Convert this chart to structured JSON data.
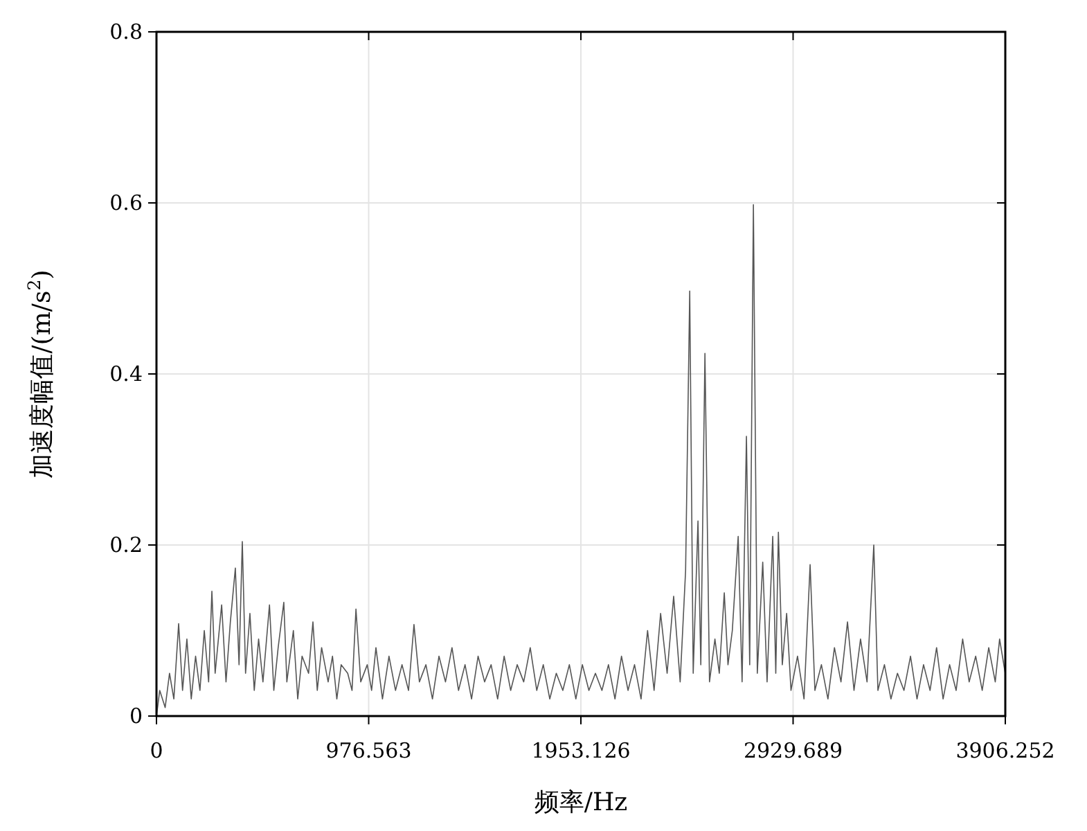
{
  "chart_data": {
    "type": "line",
    "xlabel": "频率/Hz",
    "ylabel": "加速度幅值/(m/s$^{2}$)",
    "xlim": [
      0,
      3906.252
    ],
    "ylim": [
      0,
      0.8
    ],
    "xticks": [
      0,
      976.563,
      1953.126,
      2929.689,
      3906.252
    ],
    "yticks": [
      0,
      0.2,
      0.4,
      0.6,
      0.8
    ],
    "grid": true,
    "marker": "none",
    "line_style": "solid",
    "x": [
      0,
      15,
      40,
      60,
      80,
      102,
      120,
      140,
      160,
      180,
      200,
      220,
      240,
      255,
      270,
      300,
      320,
      340,
      363,
      380,
      395,
      410,
      430,
      450,
      470,
      490,
      520,
      540,
      560,
      586,
      600,
      630,
      650,
      670,
      700,
      720,
      740,
      760,
      790,
      810,
      830,
      850,
      880,
      900,
      918,
      940,
      970,
      990,
      1010,
      1040,
      1070,
      1100,
      1130,
      1160,
      1185,
      1210,
      1240,
      1270,
      1300,
      1330,
      1360,
      1390,
      1420,
      1450,
      1480,
      1510,
      1540,
      1570,
      1600,
      1630,
      1660,
      1690,
      1720,
      1750,
      1780,
      1810,
      1840,
      1870,
      1900,
      1930,
      1960,
      1990,
      2020,
      2050,
      2080,
      2110,
      2140,
      2170,
      2200,
      2230,
      2260,
      2290,
      2320,
      2350,
      2380,
      2410,
      2435,
      2454,
      2470,
      2492,
      2505,
      2524,
      2545,
      2570,
      2590,
      2613,
      2630,
      2650,
      2677,
      2695,
      2715,
      2730,
      2747,
      2765,
      2790,
      2810,
      2836,
      2850,
      2862,
      2880,
      2900,
      2920,
      2950,
      2980,
      3008,
      3030,
      3060,
      3090,
      3120,
      3150,
      3180,
      3210,
      3240,
      3270,
      3301,
      3320,
      3350,
      3380,
      3410,
      3440,
      3470,
      3500,
      3530,
      3560,
      3590,
      3620,
      3650,
      3680,
      3710,
      3740,
      3770,
      3800,
      3830,
      3860,
      3880,
      3906
    ],
    "series": [
      {
        "color": "#555555",
        "values": [
          0,
          0.03,
          0.01,
          0.05,
          0.02,
          0.108,
          0.03,
          0.09,
          0.02,
          0.07,
          0.03,
          0.1,
          0.04,
          0.146,
          0.05,
          0.13,
          0.04,
          0.11,
          0.173,
          0.06,
          0.204,
          0.05,
          0.12,
          0.03,
          0.09,
          0.04,
          0.13,
          0.03,
          0.08,
          0.133,
          0.04,
          0.1,
          0.02,
          0.07,
          0.05,
          0.11,
          0.03,
          0.08,
          0.04,
          0.07,
          0.02,
          0.06,
          0.05,
          0.03,
          0.125,
          0.04,
          0.06,
          0.03,
          0.08,
          0.02,
          0.07,
          0.03,
          0.06,
          0.03,
          0.107,
          0.04,
          0.06,
          0.02,
          0.07,
          0.04,
          0.08,
          0.03,
          0.06,
          0.02,
          0.07,
          0.04,
          0.06,
          0.02,
          0.07,
          0.03,
          0.06,
          0.04,
          0.08,
          0.03,
          0.06,
          0.02,
          0.05,
          0.03,
          0.06,
          0.02,
          0.06,
          0.03,
          0.05,
          0.03,
          0.06,
          0.02,
          0.07,
          0.03,
          0.06,
          0.02,
          0.1,
          0.03,
          0.12,
          0.05,
          0.14,
          0.04,
          0.17,
          0.497,
          0.05,
          0.228,
          0.06,
          0.424,
          0.04,
          0.09,
          0.05,
          0.144,
          0.06,
          0.1,
          0.21,
          0.04,
          0.327,
          0.06,
          0.598,
          0.05,
          0.18,
          0.04,
          0.21,
          0.05,
          0.215,
          0.06,
          0.12,
          0.03,
          0.07,
          0.02,
          0.177,
          0.03,
          0.06,
          0.02,
          0.08,
          0.04,
          0.11,
          0.03,
          0.09,
          0.04,
          0.2,
          0.03,
          0.06,
          0.02,
          0.05,
          0.03,
          0.07,
          0.02,
          0.06,
          0.03,
          0.08,
          0.02,
          0.06,
          0.03,
          0.09,
          0.04,
          0.07,
          0.03,
          0.08,
          0.04,
          0.09,
          0.05
        ]
      }
    ]
  }
}
